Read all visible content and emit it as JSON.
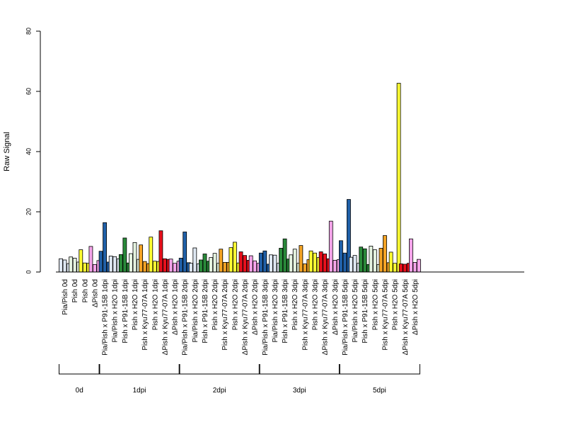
{
  "chart_data": {
    "type": "bar",
    "title": "",
    "xlabel": "",
    "ylabel": "Raw Signal",
    "ylim": [
      0,
      80
    ],
    "yticks": [
      0,
      20,
      40,
      60,
      80
    ],
    "grid": false,
    "legend": "none",
    "groups": [
      {
        "label": "0d",
        "categories": [
          {
            "name": "Pia/Pish 0d",
            "color": "#dfe8f3",
            "values": [
              4.4,
              4.0,
              2.8
            ]
          },
          {
            "name": "Pish 0d",
            "color": "#e5f3e0",
            "values": [
              5.0,
              4.6,
              3.3
            ]
          },
          {
            "name": "Pish 0d",
            "color": "#ffff33",
            "values": [
              7.4,
              3.0,
              2.9
            ]
          },
          {
            "name": "ΔPish 0d",
            "color": "#f4a4ea",
            "values": [
              8.5,
              2.5,
              3.8
            ]
          }
        ]
      },
      {
        "label": "1dpi",
        "categories": [
          {
            "name": "Pia/Pish x P91-15B 1dpi",
            "color": "#2060a8",
            "values": [
              6.9,
              16.4,
              3.3
            ]
          },
          {
            "name": "Pia/Pish x H2O 1dpi",
            "color": "#dfe8f3",
            "values": [
              5.3,
              5.1,
              4.4
            ]
          },
          {
            "name": "Pish x P91-15B 1dpi",
            "color": "#2a8a3a",
            "values": [
              5.8,
              11.3,
              3.0
            ]
          },
          {
            "name": "Pish x H2O 1dpi",
            "color": "#e5f3e0",
            "values": [
              6.1,
              9.8,
              4.2
            ]
          },
          {
            "name": "Pish x Kyu77-07A 1dpi",
            "color": "#f4a425",
            "values": [
              9.0,
              3.5,
              2.8
            ]
          },
          {
            "name": "Pish x H2O 1dpi",
            "color": "#ffff33",
            "values": [
              11.6,
              3.6,
              3.5
            ]
          },
          {
            "name": "ΔPish x Kyu77-07A 1dpi",
            "color": "#e8101c",
            "values": [
              13.7,
              4.4,
              4.2
            ]
          },
          {
            "name": "ΔPish x H2O 1dpi",
            "color": "#f4a4ea",
            "values": [
              4.3,
              2.9,
              3.6
            ]
          }
        ]
      },
      {
        "label": "2dpi",
        "categories": [
          {
            "name": "Pia/Pish x P91-15B 2dpi",
            "color": "#2060a8",
            "values": [
              4.6,
              13.3,
              3.1
            ]
          },
          {
            "name": "Pia/Pish x H2O 2dpi",
            "color": "#dfe8f3",
            "values": [
              2.9,
              8.0,
              2.7
            ]
          },
          {
            "name": "Pish x P91-15B 2dpi",
            "color": "#2a8a3a",
            "values": [
              4.0,
              6.0,
              3.6
            ]
          },
          {
            "name": "Pish x H2O 2dpi",
            "color": "#e5f3e0",
            "values": [
              4.8,
              6.2,
              2.9
            ]
          },
          {
            "name": "Pish x Kyu77-07A 2dpi",
            "color": "#f4a425",
            "values": [
              7.6,
              3.2,
              3.2
            ]
          },
          {
            "name": "Pish x H2O 2dpi",
            "color": "#ffff33",
            "values": [
              8.1,
              9.9,
              3.0
            ]
          },
          {
            "name": "ΔPish x Kyu77-07A 2dpi",
            "color": "#e8101c",
            "values": [
              6.7,
              5.5,
              3.9
            ]
          },
          {
            "name": "ΔPish x H2O 2dpi",
            "color": "#f4a4ea",
            "values": [
              5.4,
              3.7,
              2.9
            ]
          }
        ]
      },
      {
        "label": "3dpi",
        "categories": [
          {
            "name": "Pia/Pish x P91-15B 3dpi",
            "color": "#2060a8",
            "values": [
              6.3,
              7.0,
              2.6
            ]
          },
          {
            "name": "Pia/Pish x H2O 3dpi",
            "color": "#dfe8f3",
            "values": [
              5.7,
              5.6,
              2.9
            ]
          },
          {
            "name": "Pish x P91-15B 3dpi",
            "color": "#2a8a3a",
            "values": [
              7.9,
              11.0,
              4.3
            ]
          },
          {
            "name": "Pish x H2O 3dpi",
            "color": "#e5f3e0",
            "values": [
              5.7,
              7.6,
              2.9
            ]
          },
          {
            "name": "Pish x Kyu77-07A 3dpi",
            "color": "#f4a425",
            "values": [
              8.8,
              2.7,
              4.1
            ]
          },
          {
            "name": "Pish x H2O 3dpi",
            "color": "#ffff33",
            "values": [
              7.0,
              6.3,
              4.8
            ]
          },
          {
            "name": "ΔPish x Kyu77-07A 3dpi",
            "color": "#e8101c",
            "values": [
              6.7,
              6.0,
              4.4
            ]
          },
          {
            "name": "ΔPish x H2O 3dpi",
            "color": "#f4a4ea",
            "values": [
              16.9,
              3.9,
              4.1
            ]
          }
        ]
      },
      {
        "label": "5dpi",
        "categories": [
          {
            "name": "Pia/Pish x P91-15B 5dpi",
            "color": "#2060a8",
            "values": [
              10.4,
              6.3,
              24.1
            ]
          },
          {
            "name": "Pia/Pish x H2O 5dpi",
            "color": "#dfe8f3",
            "values": [
              4.9,
              5.5,
              2.9
            ]
          },
          {
            "name": "Pish x P91-15B 5dpi",
            "color": "#2a8a3a",
            "values": [
              8.3,
              7.7,
              2.5
            ]
          },
          {
            "name": "Pish x H2O 5dpi",
            "color": "#e5f3e0",
            "values": [
              8.6,
              7.4,
              2.5
            ]
          },
          {
            "name": "Pish x Kyu77-07A 5dpi",
            "color": "#f4a425",
            "values": [
              7.9,
              12.1,
              3.1
            ]
          },
          {
            "name": "Pish x H2O 5dpi",
            "color": "#ffff33",
            "values": [
              6.6,
              2.9,
              62.7
            ]
          },
          {
            "name": "ΔPish x Kyu77-07A 5dpi",
            "color": "#e8101c",
            "values": [
              2.7,
              2.6,
              2.9
            ]
          },
          {
            "name": "ΔPish x H2O 5dpi",
            "color": "#f4a4ea",
            "values": [
              11.0,
              3.2,
              4.2
            ]
          }
        ]
      }
    ]
  }
}
